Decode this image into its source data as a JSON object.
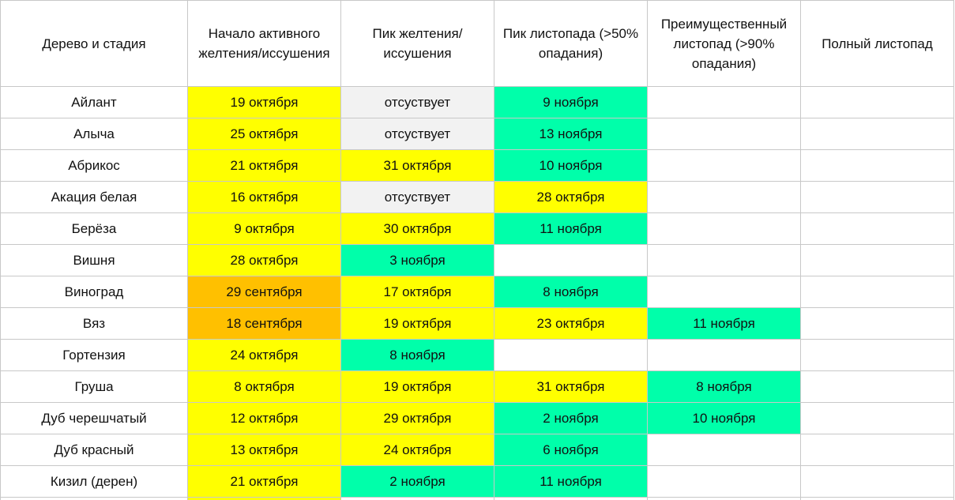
{
  "colors": {
    "yellow": "#ffff00",
    "orange": "#ffc000",
    "green": "#00ffaa",
    "gray": "#f2f2f2",
    "white": "#ffffff"
  },
  "headers": [
    "Дерево и стадия",
    "Начало активного желтения/иссушения",
    "Пик желтения/иссушения",
    "Пик листопада (>50% опадания)",
    "Преимущественный листопад (>90% опадания)",
    "Полный листопад"
  ],
  "rows": [
    {
      "tree": "Айлант",
      "cells": [
        {
          "text": "19 октября",
          "color": "yellow"
        },
        {
          "text": "отсуствует",
          "color": "gray"
        },
        {
          "text": "9 ноября",
          "color": "green"
        },
        {
          "text": "",
          "color": "white"
        },
        {
          "text": "",
          "color": "white"
        }
      ]
    },
    {
      "tree": "Алыча",
      "cells": [
        {
          "text": "25 октября",
          "color": "yellow"
        },
        {
          "text": "отсуствует",
          "color": "gray"
        },
        {
          "text": "13 ноября",
          "color": "green"
        },
        {
          "text": "",
          "color": "white"
        },
        {
          "text": "",
          "color": "white"
        }
      ]
    },
    {
      "tree": "Абрикос",
      "cells": [
        {
          "text": "21 октября",
          "color": "yellow"
        },
        {
          "text": "31 октября",
          "color": "yellow"
        },
        {
          "text": "10 ноября",
          "color": "green"
        },
        {
          "text": "",
          "color": "white"
        },
        {
          "text": "",
          "color": "white"
        }
      ]
    },
    {
      "tree": "Акация белая",
      "cells": [
        {
          "text": "16 октября",
          "color": "yellow"
        },
        {
          "text": "отсуствует",
          "color": "gray"
        },
        {
          "text": "28 октября",
          "color": "yellow"
        },
        {
          "text": "",
          "color": "white"
        },
        {
          "text": "",
          "color": "white"
        }
      ]
    },
    {
      "tree": "Берёза",
      "cells": [
        {
          "text": "9 октября",
          "color": "yellow"
        },
        {
          "text": "30 октября",
          "color": "yellow"
        },
        {
          "text": "11 ноября",
          "color": "green"
        },
        {
          "text": "",
          "color": "white"
        },
        {
          "text": "",
          "color": "white"
        }
      ]
    },
    {
      "tree": "Вишня",
      "cells": [
        {
          "text": "28 октября",
          "color": "yellow"
        },
        {
          "text": "3 ноября",
          "color": "green"
        },
        {
          "text": "",
          "color": "white"
        },
        {
          "text": "",
          "color": "white"
        },
        {
          "text": "",
          "color": "white"
        }
      ]
    },
    {
      "tree": "Виноград",
      "cells": [
        {
          "text": "29 сентября",
          "color": "orange"
        },
        {
          "text": "17 октября",
          "color": "yellow"
        },
        {
          "text": "8 ноября",
          "color": "green"
        },
        {
          "text": "",
          "color": "white"
        },
        {
          "text": "",
          "color": "white"
        }
      ]
    },
    {
      "tree": "Вяз",
      "cells": [
        {
          "text": "18 сентября",
          "color": "orange"
        },
        {
          "text": "19 октября",
          "color": "yellow"
        },
        {
          "text": "23 октября",
          "color": "yellow"
        },
        {
          "text": "11 ноября",
          "color": "green"
        },
        {
          "text": "",
          "color": "white"
        }
      ]
    },
    {
      "tree": "Гортензия",
      "cells": [
        {
          "text": "24 октября",
          "color": "yellow"
        },
        {
          "text": "8 ноября",
          "color": "green"
        },
        {
          "text": "",
          "color": "white"
        },
        {
          "text": "",
          "color": "white"
        },
        {
          "text": "",
          "color": "white"
        }
      ]
    },
    {
      "tree": "Груша",
      "cells": [
        {
          "text": "8 октября",
          "color": "yellow"
        },
        {
          "text": "19 октября",
          "color": "yellow"
        },
        {
          "text": "31 октября",
          "color": "yellow"
        },
        {
          "text": "8 ноября",
          "color": "green"
        },
        {
          "text": "",
          "color": "white"
        }
      ]
    },
    {
      "tree": "Дуб черешчатый",
      "cells": [
        {
          "text": "12 октября",
          "color": "yellow"
        },
        {
          "text": "29 октября",
          "color": "yellow"
        },
        {
          "text": "2 ноября",
          "color": "green"
        },
        {
          "text": "10 ноября",
          "color": "green"
        },
        {
          "text": "",
          "color": "white"
        }
      ]
    },
    {
      "tree": "Дуб красный",
      "cells": [
        {
          "text": "13 октября",
          "color": "yellow"
        },
        {
          "text": "24 октября",
          "color": "yellow"
        },
        {
          "text": "6 ноября",
          "color": "green"
        },
        {
          "text": "",
          "color": "white"
        },
        {
          "text": "",
          "color": "white"
        }
      ]
    },
    {
      "tree": "Кизил (дерен)",
      "cells": [
        {
          "text": "21 октября",
          "color": "yellow"
        },
        {
          "text": "2 ноября",
          "color": "green"
        },
        {
          "text": "11 ноября",
          "color": "green"
        },
        {
          "text": "",
          "color": "white"
        },
        {
          "text": "",
          "color": "white"
        }
      ]
    }
  ],
  "partial_row": {
    "cells": [
      {
        "color": "white"
      },
      {
        "color": "yellow"
      },
      {
        "color": "white"
      },
      {
        "color": "white"
      },
      {
        "color": "white"
      },
      {
        "color": "white"
      }
    ]
  }
}
